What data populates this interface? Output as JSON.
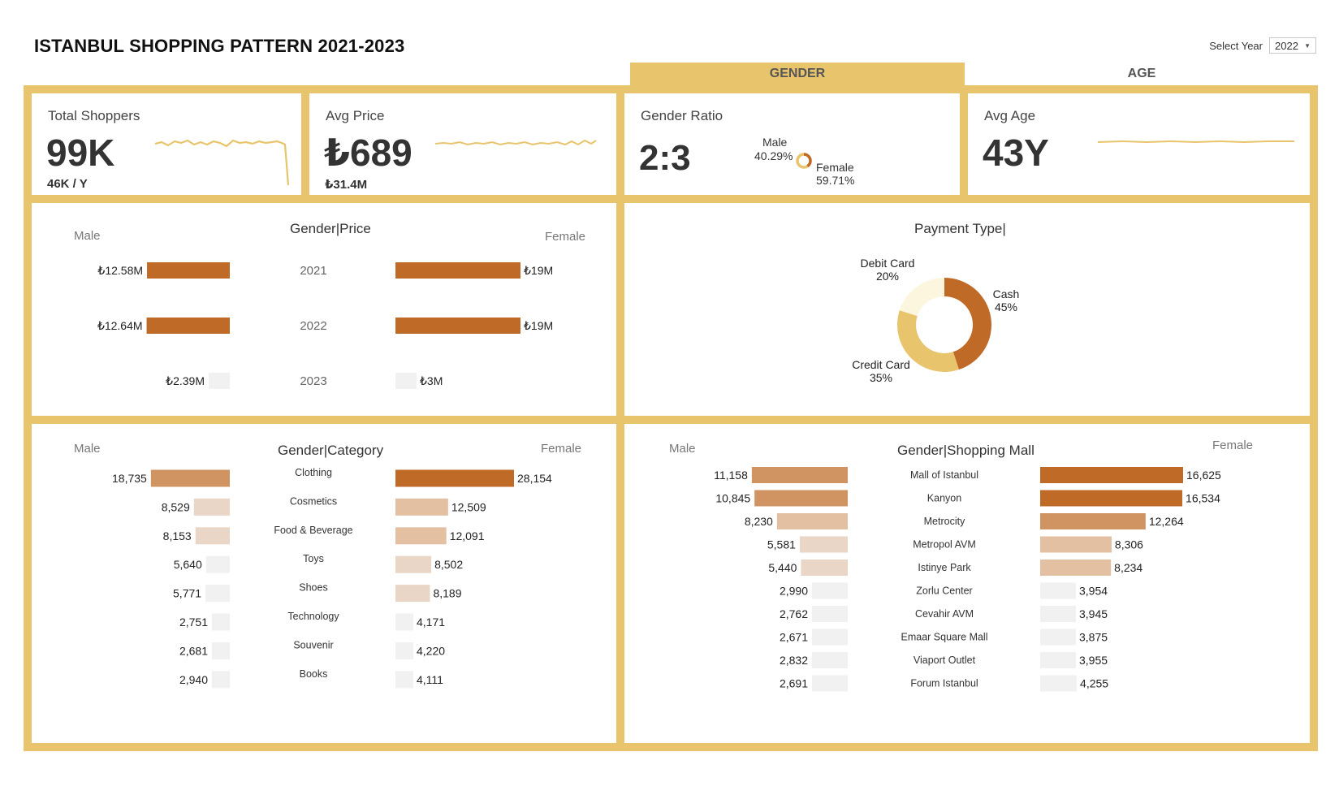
{
  "header": {
    "title": "ISTANBUL SHOPPING PATTERN 2021-2023",
    "year_label": "Select Year",
    "year_value": "2022"
  },
  "tabs": [
    {
      "label": "GENDER",
      "active": true
    },
    {
      "label": "AGE",
      "active": false
    }
  ],
  "colors": {
    "frame": "#e8c46c",
    "dark_bar": "#c06a28",
    "mid_bar": "#d09462",
    "light_bar": "#e3c0a2",
    "lighter_bar": "#e9d6c6",
    "pale_bar": "#f1f1f1",
    "sparkline": "#e8c46c",
    "cash": "#c06a28",
    "credit_card": "#e8c46c",
    "debit_card": "#fcf6de"
  },
  "kpis": {
    "total_shoppers": {
      "label": "Total Shoppers",
      "value": "99K",
      "sub": "46K / Y"
    },
    "avg_price": {
      "label": "Avg Price",
      "value": "₺689",
      "sub": "₺31.4M"
    },
    "gender_ratio": {
      "label": "Gender Ratio",
      "value": "2:3",
      "male_label": "Male",
      "male_pct": "40.29%",
      "female_label": "Female",
      "female_pct": "59.71%"
    },
    "avg_age": {
      "label": "Avg Age",
      "value": "43Y"
    }
  },
  "chart_data": [
    {
      "id": "gender_price",
      "type": "bar",
      "title": "Gender|Price",
      "left_label": "Male",
      "right_label": "Female",
      "categories": [
        "2021",
        "2022",
        "2023"
      ],
      "series": [
        {
          "name": "Male",
          "values": [
            12.58,
            12.64,
            2.39
          ],
          "labels": [
            "₺12.58M",
            "₺12.64M",
            "₺2.39M"
          ]
        },
        {
          "name": "Female",
          "values": [
            19,
            19,
            3
          ],
          "labels": [
            "₺19M",
            "₺19M",
            "₺3M"
          ]
        }
      ]
    },
    {
      "id": "payment_type",
      "type": "pie",
      "title": "Payment Type|",
      "categories": [
        "Cash",
        "Credit Card",
        "Debit Card"
      ],
      "values": [
        45,
        35,
        20
      ],
      "labels": [
        "45%",
        "35%",
        "20%"
      ]
    },
    {
      "id": "gender_category",
      "type": "bar",
      "title": "Gender|Category",
      "left_label": "Male",
      "right_label": "Female",
      "categories": [
        "Clothing",
        "Cosmetics",
        "Food & Beverage",
        "Toys",
        "Shoes",
        "Technology",
        "Souvenir",
        "Books"
      ],
      "series": [
        {
          "name": "Male",
          "values": [
            18735,
            8529,
            8153,
            5640,
            5771,
            2751,
            2681,
            2940
          ],
          "labels": [
            "18,735",
            "8,529",
            "8,153",
            "5,640",
            "5,771",
            "2,751",
            "2,681",
            "2,940"
          ]
        },
        {
          "name": "Female",
          "values": [
            28154,
            12509,
            12091,
            8502,
            8189,
            4171,
            4220,
            4111
          ],
          "labels": [
            "28,154",
            "12,509",
            "12,091",
            "8,502",
            "8,189",
            "4,171",
            "4,220",
            "4,111"
          ]
        }
      ]
    },
    {
      "id": "gender_mall",
      "type": "bar",
      "title": "Gender|Shopping Mall",
      "left_label": "Male",
      "right_label": "Female",
      "categories": [
        "Mall of Istanbul",
        "Kanyon",
        "Metrocity",
        "Metropol AVM",
        "Istinye Park",
        "Zorlu Center",
        "Cevahir AVM",
        "Emaar Square Mall",
        "Viaport Outlet",
        "Forum Istanbul"
      ],
      "series": [
        {
          "name": "Male",
          "values": [
            11158,
            10845,
            8230,
            5581,
            5440,
            2990,
            2762,
            2671,
            2832,
            2691
          ],
          "labels": [
            "11,158",
            "10,845",
            "8,230",
            "5,581",
            "5,440",
            "2,990",
            "2,762",
            "2,671",
            "2,832",
            "2,691"
          ]
        },
        {
          "name": "Female",
          "values": [
            16625,
            16534,
            12264,
            8306,
            8234,
            3954,
            3945,
            3875,
            3955,
            4255
          ],
          "labels": [
            "16,625",
            "16,534",
            "12,264",
            "8,306",
            "8,234",
            "3,954",
            "3,945",
            "3,875",
            "3,955",
            "4,255"
          ]
        }
      ]
    }
  ]
}
